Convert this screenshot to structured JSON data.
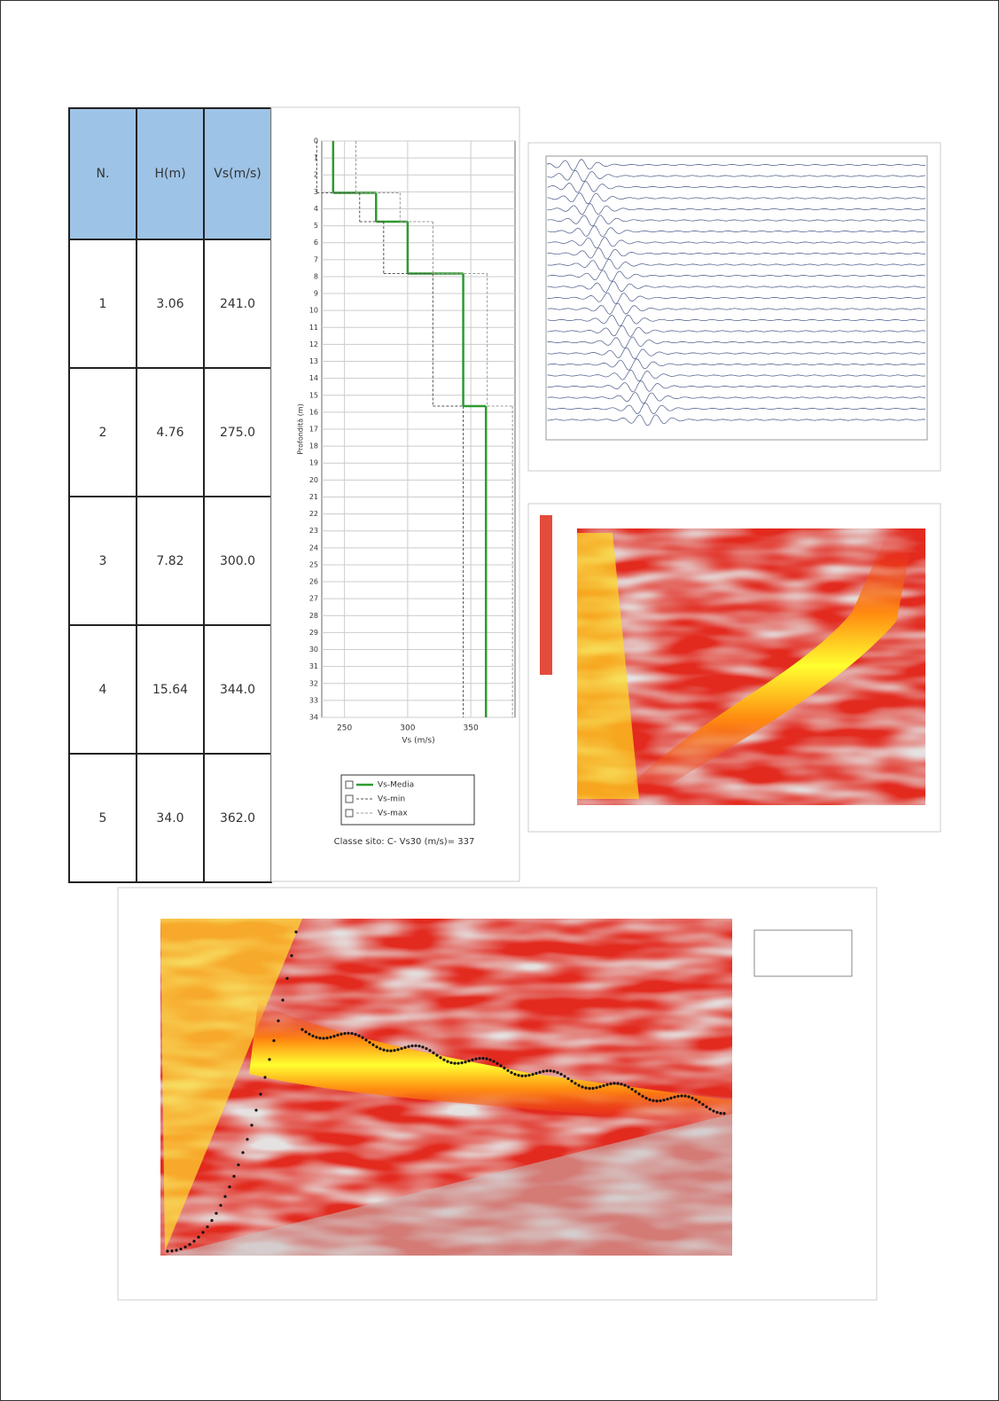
{
  "table": {
    "headers": [
      "N.",
      "H(m)",
      "Vs(m/s)"
    ],
    "rows": [
      [
        "1",
        "3.06",
        "241.0"
      ],
      [
        "2",
        "4.76",
        "275.0"
      ],
      [
        "3",
        "7.82",
        "300.0"
      ],
      [
        "4",
        "15.64",
        "344.0"
      ],
      [
        "5",
        "34.0",
        "362.0"
      ]
    ]
  },
  "chart_data": {
    "type": "step",
    "y_label": "Profondità (m)",
    "x_label": "Vs (m/s)",
    "depths": [
      0,
      3.06,
      4.76,
      7.82,
      15.64,
      34
    ],
    "series": [
      {
        "name": "Vs-Media",
        "color": "#2e9a2e",
        "values": [
          241,
          275,
          300,
          344,
          362
        ]
      },
      {
        "name": "Vs-min",
        "color": "#555555",
        "values": [
          228,
          262,
          281,
          320,
          344
        ]
      },
      {
        "name": "Vs-max",
        "color": "#999999",
        "values": [
          259,
          294,
          320,
          363,
          383
        ]
      }
    ],
    "xlim": [
      232,
      385
    ],
    "xticks": [
      250,
      300,
      350
    ],
    "ylim": [
      0,
      34
    ],
    "yticks": [
      0,
      1,
      2,
      3,
      4,
      5,
      6,
      7,
      8,
      9,
      10,
      11,
      12,
      13,
      14,
      15,
      16,
      17,
      18,
      19,
      20,
      21,
      22,
      23,
      24,
      25,
      26,
      27,
      28,
      29,
      30,
      31,
      32,
      33,
      34
    ],
    "grid": true,
    "caption": "Classe sito: C- Vs30 (m/s)= 337"
  }
}
